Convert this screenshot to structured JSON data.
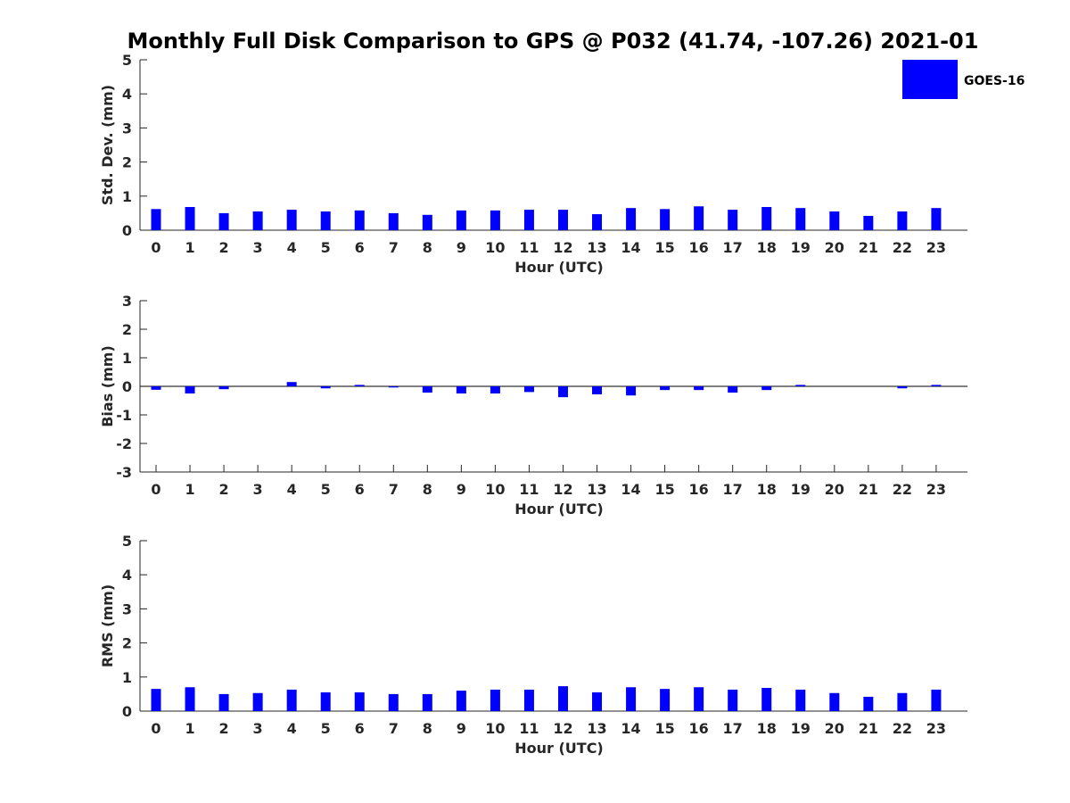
{
  "figure": {
    "title": "Monthly Full Disk Comparison to GPS @ P032 (41.74, -107.26) 2021-01"
  },
  "legend": {
    "label": "GOES-16",
    "color": "#0000ff",
    "placement": "top-right"
  },
  "chart_data": [
    {
      "type": "bar",
      "name": "std-dev",
      "ylabel": "Std. Dev. (mm)",
      "xlabel": "Hour (UTC)",
      "ylim": [
        0,
        5
      ],
      "yticks": [
        0,
        1,
        2,
        3,
        4,
        5
      ],
      "categories": [
        "0",
        "1",
        "2",
        "3",
        "4",
        "5",
        "6",
        "7",
        "8",
        "9",
        "10",
        "11",
        "12",
        "13",
        "14",
        "15",
        "16",
        "17",
        "18",
        "19",
        "20",
        "21",
        "22",
        "23"
      ],
      "series": [
        {
          "name": "GOES-16",
          "color": "#0000ff",
          "values": [
            0.62,
            0.68,
            0.5,
            0.55,
            0.6,
            0.55,
            0.58,
            0.5,
            0.45,
            0.58,
            0.58,
            0.6,
            0.6,
            0.47,
            0.65,
            0.62,
            0.7,
            0.6,
            0.68,
            0.65,
            0.55,
            0.42,
            0.55,
            0.65
          ]
        }
      ]
    },
    {
      "type": "bar",
      "name": "bias",
      "ylabel": "Bias (mm)",
      "xlabel": "Hour (UTC)",
      "ylim": [
        -3,
        3
      ],
      "yticks": [
        -3,
        -2,
        -1,
        0,
        1,
        2,
        3
      ],
      "categories": [
        "0",
        "1",
        "2",
        "3",
        "4",
        "5",
        "6",
        "7",
        "8",
        "9",
        "10",
        "11",
        "12",
        "13",
        "14",
        "15",
        "16",
        "17",
        "18",
        "19",
        "20",
        "21",
        "22",
        "23"
      ],
      "series": [
        {
          "name": "GOES-16",
          "color": "#0000ff",
          "values": [
            -0.12,
            -0.25,
            -0.1,
            0,
            0.15,
            -0.07,
            0.05,
            -0.04,
            -0.22,
            -0.25,
            -0.25,
            -0.2,
            -0.38,
            -0.28,
            -0.32,
            -0.13,
            -0.13,
            -0.22,
            -0.13,
            0.05,
            0,
            0,
            -0.07,
            0.05
          ]
        }
      ]
    },
    {
      "type": "bar",
      "name": "rms",
      "ylabel": "RMS (mm)",
      "xlabel": "Hour (UTC)",
      "ylim": [
        0,
        5
      ],
      "yticks": [
        0,
        1,
        2,
        3,
        4,
        5
      ],
      "categories": [
        "0",
        "1",
        "2",
        "3",
        "4",
        "5",
        "6",
        "7",
        "8",
        "9",
        "10",
        "11",
        "12",
        "13",
        "14",
        "15",
        "16",
        "17",
        "18",
        "19",
        "20",
        "21",
        "22",
        "23"
      ],
      "series": [
        {
          "name": "GOES-16",
          "color": "#0000ff",
          "values": [
            0.65,
            0.7,
            0.5,
            0.53,
            0.63,
            0.55,
            0.55,
            0.5,
            0.5,
            0.6,
            0.63,
            0.63,
            0.73,
            0.55,
            0.7,
            0.65,
            0.7,
            0.63,
            0.68,
            0.63,
            0.53,
            0.42,
            0.53,
            0.63
          ]
        }
      ]
    }
  ]
}
